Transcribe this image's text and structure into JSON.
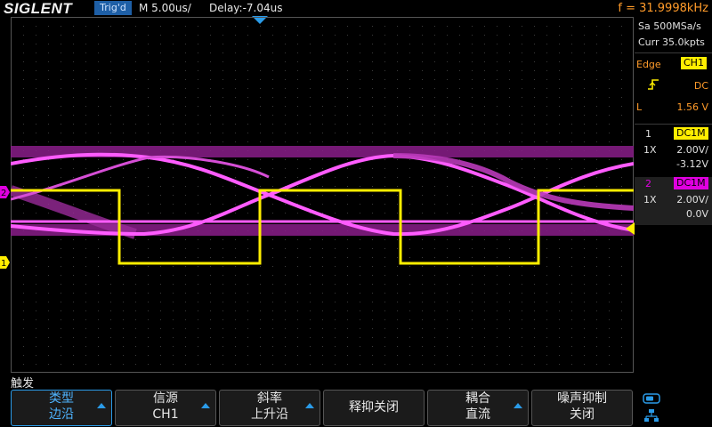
{
  "header": {
    "brand": "SIGLENT",
    "trigger_status": "Trig'd",
    "timebase": "M 5.00us/",
    "delay": "Delay:-7.04us",
    "frequency": "f = 31.9998kHz"
  },
  "acquisition": {
    "sample_rate": "Sa 500MSa/s",
    "memory": "Curr 35.0kpts"
  },
  "trigger_info": {
    "type_label": "Edge",
    "source": "CH1",
    "coupling": "DC",
    "level_label": "L",
    "level_value": "1.56 V"
  },
  "channels": [
    {
      "number": "1",
      "coupling": "DC1M",
      "probe": "1X",
      "scale": "2.00V/",
      "offset": "-3.12V",
      "color": "#ffee00"
    },
    {
      "number": "2",
      "coupling": "DC1M",
      "probe": "1X",
      "scale": "2.00V/",
      "offset": "0.0V",
      "color": "#e000e0"
    }
  ],
  "markers": {
    "ch1": "1",
    "ch2": "2"
  },
  "softkeys": {
    "menu_title": "触发",
    "items": [
      {
        "line1": "类型",
        "line2": "边沿",
        "active": true,
        "arrow": true
      },
      {
        "line1": "信源",
        "line2": "CH1",
        "active": false,
        "arrow": true
      },
      {
        "line1": "斜率",
        "line2": "上升沿",
        "active": false,
        "arrow": true
      },
      {
        "single": "释抑关闭",
        "active": false,
        "arrow": false
      },
      {
        "line1": "耦合",
        "line2": "直流",
        "active": false,
        "arrow": true
      },
      {
        "line1": "噪声抑制",
        "line2": "关闭",
        "active": false,
        "arrow": false
      }
    ]
  },
  "colors": {
    "ch1": "#ffee00",
    "ch2": "#e000e0",
    "accent": "#2a9be8",
    "freq": "#ff9b2a"
  },
  "icons": [
    "trigger-position-icon",
    "rising-edge-icon",
    "trigger-level-icon",
    "usb-icon",
    "network-icon"
  ]
}
